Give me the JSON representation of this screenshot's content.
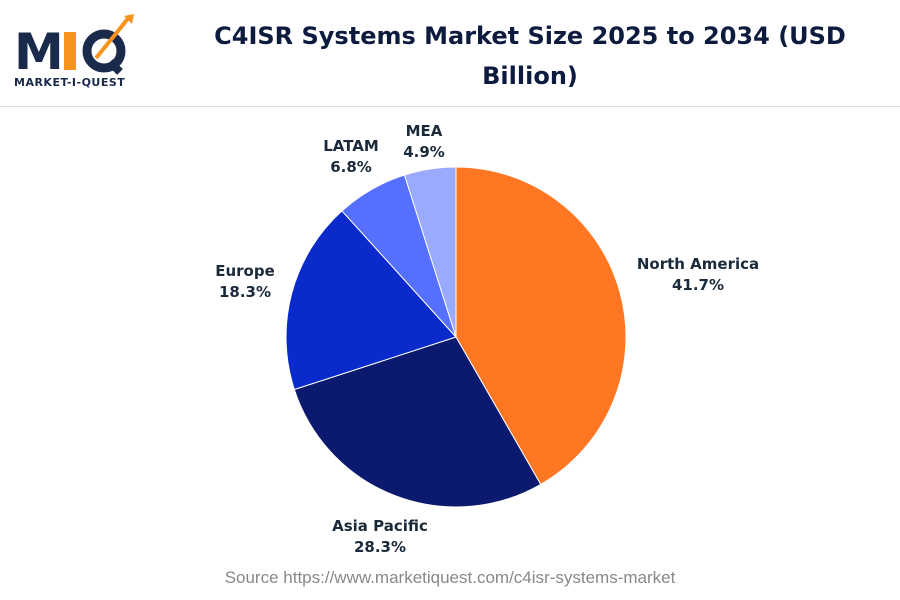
{
  "logo": {
    "text": "MIQ",
    "subtitle": "MARKET-I-QUEST"
  },
  "chart_data": {
    "type": "pie",
    "title": "C4ISR Systems Market Size 2025 to 2034 (USD Billion)",
    "categories": [
      "North America",
      "Asia Pacific",
      "Europe",
      "LATAM",
      "MEA"
    ],
    "values": [
      41.7,
      28.3,
      18.3,
      6.8,
      4.9
    ],
    "labels": [
      "41.7%",
      "28.3%",
      "18.3%",
      "6.8%",
      "4.9%"
    ],
    "colors": [
      "#FF7722",
      "#0B1A6E",
      "#0A2ACB",
      "#5570FF",
      "#9AAAFF"
    ],
    "start": "top",
    "direction": "clockwise"
  },
  "source": "Source https://www.marketiquest.com/c4isr-systems-market"
}
